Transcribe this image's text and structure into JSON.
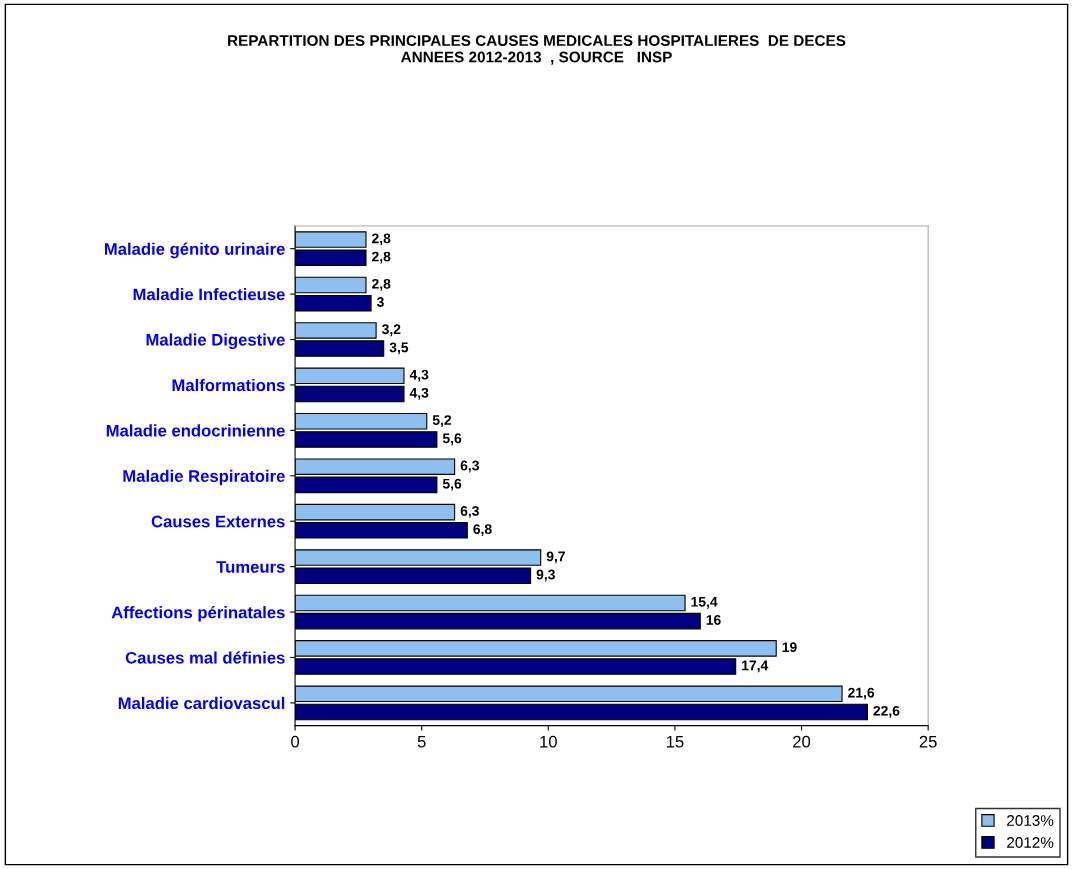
{
  "chart_data": {
    "type": "bar",
    "orientation": "horizontal",
    "title": "REPARTITION DES PRINCIPALES CAUSES MEDICALES HOSPITALIERES  DE DECES\nANNEES 2012-2013  , SOURCE   INSP",
    "categories": [
      "Maladie génito urinaire",
      "Maladie Infectieuse",
      "Maladie Digestive",
      "Malformations",
      "Maladie endocrinienne",
      "Maladie Respiratoire",
      "Causes Externes",
      "Tumeurs",
      "Affections périnatales",
      "Causes mal définies",
      "Maladie cardiovascul"
    ],
    "series": [
      {
        "name": "2013%",
        "color": "#8fbfee",
        "values": [
          2.8,
          2.8,
          3.2,
          4.3,
          5.2,
          6.3,
          6.3,
          9.7,
          15.4,
          19,
          21.6
        ],
        "value_labels": [
          "2,8",
          "2,8",
          "3,2",
          "4,3",
          "5,2",
          "6,3",
          "6,3",
          "9,7",
          "15,4",
          "19",
          "21,6"
        ]
      },
      {
        "name": "2012%",
        "color": "#000080",
        "values": [
          2.8,
          3,
          3.5,
          4.3,
          5.6,
          5.6,
          6.8,
          9.3,
          16,
          17.4,
          22.6
        ],
        "value_labels": [
          "2,8",
          "3",
          "3,5",
          "4,3",
          "5,6",
          "5,6",
          "6,8",
          "9,3",
          "16",
          "17,4",
          "22,6"
        ]
      }
    ],
    "xlim": [
      0,
      25
    ],
    "xticks": [
      0,
      5,
      10,
      15,
      20,
      25
    ],
    "grid": false,
    "legend": "bottom right"
  }
}
